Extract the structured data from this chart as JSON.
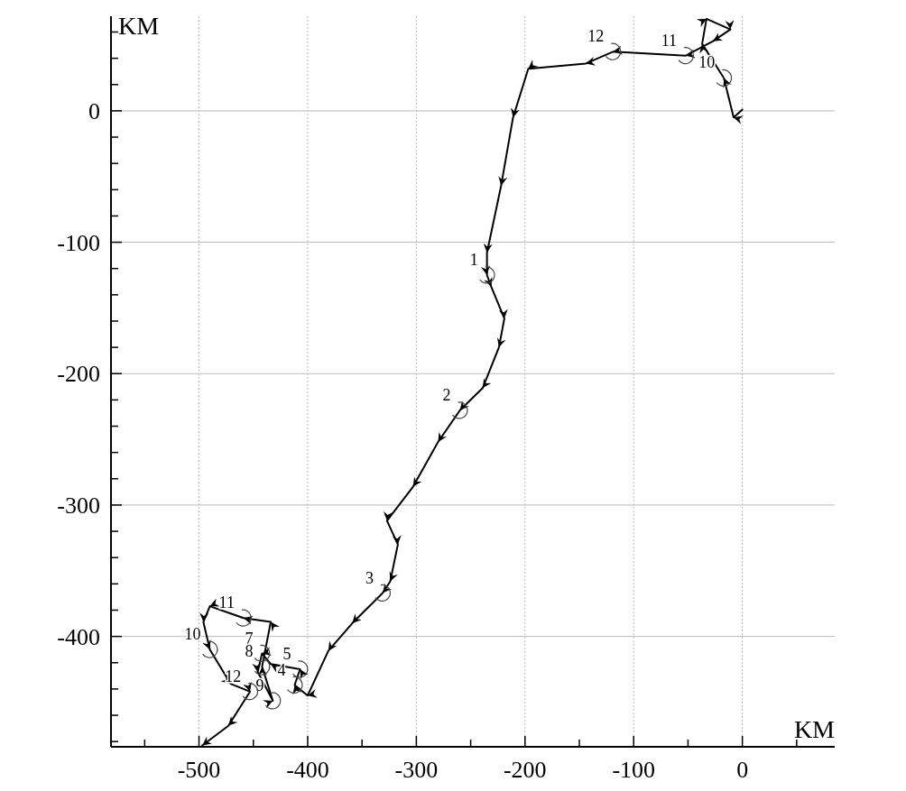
{
  "chart_data": {
    "type": "line",
    "xlabel": "KM",
    "ylabel": "KM",
    "xlim": [
      -581,
      85
    ],
    "ylim": [
      -484,
      72
    ],
    "xticks": [
      {
        "value": -550,
        "label": null
      },
      -500,
      {
        "value": -450,
        "label": null
      },
      -400,
      {
        "value": -350,
        "label": null
      },
      -300,
      {
        "value": -250,
        "label": null
      },
      -200,
      {
        "value": -150,
        "label": null
      },
      -100,
      {
        "value": -50,
        "label": null
      },
      0,
      {
        "value": 50,
        "label": null
      }
    ],
    "yticks": [
      {
        "value": -480,
        "label": null
      },
      {
        "value": -460,
        "label": null
      },
      {
        "value": -440,
        "label": null
      },
      {
        "value": -420,
        "label": null
      },
      -400,
      {
        "value": -380,
        "label": null
      },
      {
        "value": -360,
        "label": null
      },
      {
        "value": -340,
        "label": null
      },
      {
        "value": -320,
        "label": null
      },
      -300,
      {
        "value": -280,
        "label": null
      },
      {
        "value": -260,
        "label": null
      },
      {
        "value": -240,
        "label": null
      },
      {
        "value": -220,
        "label": null
      },
      -200,
      {
        "value": -180,
        "label": null
      },
      {
        "value": -160,
        "label": null
      },
      {
        "value": -140,
        "label": null
      },
      {
        "value": -120,
        "label": null
      },
      -100,
      {
        "value": -80,
        "label": null
      },
      {
        "value": -60,
        "label": null
      },
      {
        "value": -40,
        "label": null
      },
      {
        "value": -20,
        "label": null
      },
      0,
      {
        "value": 20,
        "label": null
      },
      {
        "value": 40,
        "label": null
      },
      {
        "value": 60,
        "label": null
      }
    ],
    "grid": true,
    "marker": "none",
    "line_style": "solid",
    "series": [
      {
        "color": "#000000",
        "x": [
          0,
          -8,
          -17,
          -37,
          -33,
          -11,
          -27,
          -52,
          -119,
          -144,
          -197,
          -211,
          -222,
          -235,
          -235,
          -231,
          -219,
          -224,
          -239,
          -260,
          -280,
          -303,
          -327,
          -317,
          -324,
          -331,
          -359,
          -381,
          -400,
          -412,
          -407,
          -434,
          -442,
          -446,
          -432,
          -442,
          -434,
          -459,
          -490,
          -496,
          -490,
          -471,
          -453,
          -473,
          -497
        ],
        "values": [
          1,
          -5,
          25,
          51,
          70,
          62,
          53,
          42,
          45,
          36,
          32,
          -5,
          -57,
          -108,
          -125,
          -134,
          -158,
          -180,
          -211,
          -228,
          -252,
          -286,
          -312,
          -330,
          -358,
          -367,
          -390,
          -411,
          -445,
          -437,
          -425,
          -421,
          -413,
          -427,
          -449,
          -423,
          -389,
          -386,
          -377,
          -389,
          -410,
          -436,
          -442,
          -468,
          -483
        ]
      }
    ],
    "annotations": [
      {
        "text": "10",
        "x": -17,
        "y": 25
      },
      {
        "text": "11",
        "x": -52,
        "y": 42
      },
      {
        "text": "12",
        "x": -119,
        "y": 45
      },
      {
        "text": "1",
        "x": -235,
        "y": -125
      },
      {
        "text": "2",
        "x": -260,
        "y": -228
      },
      {
        "text": "3",
        "x": -331,
        "y": -367
      },
      {
        "text": "4",
        "x": -412,
        "y": -437
      },
      {
        "text": "5",
        "x": -407,
        "y": -425
      },
      {
        "text": "7",
        "x": -442,
        "y": -413
      },
      {
        "text": "8",
        "x": -442,
        "y": -423
      },
      {
        "text": "9",
        "x": -432,
        "y": -449
      },
      {
        "text": "10",
        "x": -490,
        "y": -410
      },
      {
        "text": "11",
        "x": -459,
        "y": -386
      },
      {
        "text": "12",
        "x": -453,
        "y": -442
      }
    ]
  }
}
